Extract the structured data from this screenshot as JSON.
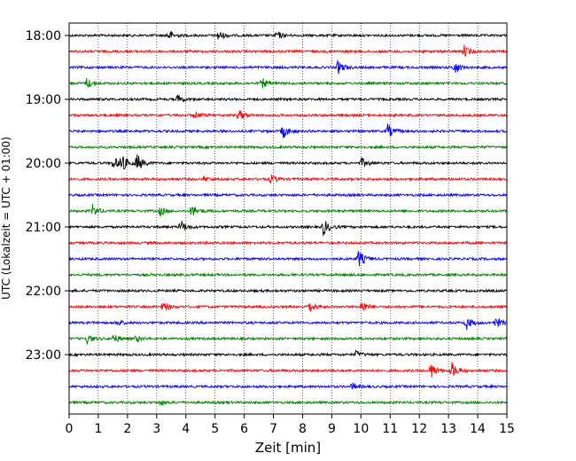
{
  "chart_data": {
    "type": "line",
    "xlabel": "Zeit  [min]",
    "ylabel": "UTC (Lokalzeit = UTC + 01:00)",
    "xlim": [
      0,
      15
    ],
    "x_ticks": [
      "0",
      "1",
      "2",
      "3",
      "4",
      "5",
      "6",
      "7",
      "8",
      "9",
      "10",
      "11",
      "12",
      "13",
      "14",
      "15"
    ],
    "y_ticks": [
      "18:00",
      "19:00",
      "20:00",
      "21:00",
      "22:00",
      "23:00"
    ],
    "grid": "vertical-dotted",
    "trace_interval_min": 15,
    "colors": [
      "#000000",
      "#ff0000",
      "#0000ff",
      "#008000"
    ],
    "traces": [
      {
        "time": "18:00",
        "color": "#000000",
        "events": [
          [
            3.4,
            6
          ],
          [
            5.1,
            6
          ],
          [
            7.1,
            5
          ]
        ]
      },
      {
        "time": "18:15",
        "color": "#ff0000",
        "events": [
          [
            13.5,
            8
          ]
        ]
      },
      {
        "time": "18:30",
        "color": "#0000ff",
        "events": [
          [
            9.2,
            8
          ],
          [
            13.2,
            8
          ]
        ]
      },
      {
        "time": "18:45",
        "color": "#008000",
        "events": [
          [
            0.6,
            6
          ],
          [
            6.6,
            6
          ]
        ]
      },
      {
        "time": "19:00",
        "color": "#000000",
        "events": [
          [
            3.7,
            5
          ]
        ]
      },
      {
        "time": "19:15",
        "color": "#ff0000",
        "events": [
          [
            4.3,
            4
          ],
          [
            5.8,
            7
          ]
        ]
      },
      {
        "time": "19:30",
        "color": "#0000ff",
        "events": [
          [
            7.3,
            9
          ],
          [
            10.9,
            9
          ]
        ]
      },
      {
        "time": "19:45",
        "color": "#008000",
        "events": []
      },
      {
        "time": "20:00",
        "color": "#000000",
        "events": [
          [
            1.5,
            8
          ],
          [
            1.75,
            12
          ],
          [
            2.3,
            12
          ],
          [
            10.0,
            6
          ]
        ]
      },
      {
        "time": "20:15",
        "color": "#ff0000",
        "events": [
          [
            4.6,
            3
          ],
          [
            6.9,
            5
          ]
        ]
      },
      {
        "time": "20:30",
        "color": "#0000ff",
        "events": []
      },
      {
        "time": "20:45",
        "color": "#008000",
        "events": [
          [
            0.8,
            7
          ],
          [
            3.1,
            6
          ],
          [
            4.2,
            8
          ]
        ]
      },
      {
        "time": "21:00",
        "color": "#000000",
        "events": [
          [
            3.8,
            8
          ],
          [
            8.7,
            10
          ]
        ]
      },
      {
        "time": "21:15",
        "color": "#ff0000",
        "events": []
      },
      {
        "time": "21:30",
        "color": "#0000ff",
        "events": [
          [
            9.9,
            11
          ]
        ]
      },
      {
        "time": "21:45",
        "color": "#008000",
        "events": []
      },
      {
        "time": "22:00",
        "color": "#000000",
        "events": []
      },
      {
        "time": "22:15",
        "color": "#ff0000",
        "events": [
          [
            3.2,
            6
          ],
          [
            8.2,
            7
          ],
          [
            10.0,
            7
          ]
        ]
      },
      {
        "time": "22:30",
        "color": "#0000ff",
        "events": [
          [
            1.6,
            4
          ],
          [
            13.6,
            8
          ],
          [
            14.6,
            7
          ]
        ]
      },
      {
        "time": "22:45",
        "color": "#008000",
        "events": [
          [
            0.6,
            6
          ],
          [
            1.5,
            6
          ],
          [
            2.3,
            4
          ]
        ]
      },
      {
        "time": "23:00",
        "color": "#000000",
        "events": [
          [
            9.8,
            4
          ]
        ]
      },
      {
        "time": "23:15",
        "color": "#ff0000",
        "events": [
          [
            12.4,
            9
          ],
          [
            13.1,
            10
          ]
        ]
      },
      {
        "time": "23:30",
        "color": "#0000ff",
        "events": [
          [
            9.7,
            4
          ]
        ]
      },
      {
        "time": "23:45",
        "color": "#008000",
        "events": [
          [
            3.1,
            3
          ]
        ]
      }
    ]
  }
}
